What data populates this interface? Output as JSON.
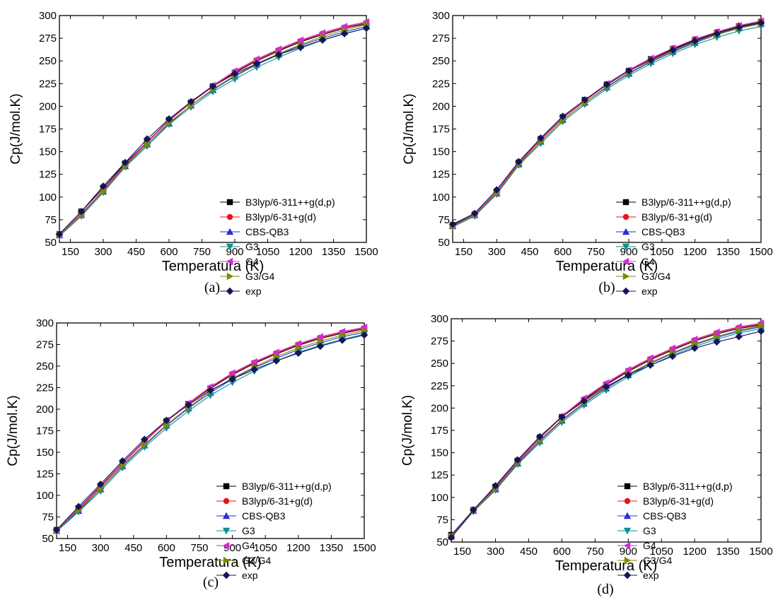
{
  "chart_data": [
    {
      "type": "line",
      "panel_label": "(a)",
      "xlabel": "Temperatura (K)",
      "ylabel": "Cp(J/mol.K)",
      "xlim": [
        100,
        1500
      ],
      "ylim": [
        50,
        300
      ],
      "xticks": [
        "150",
        "300",
        "450",
        "600",
        "750",
        "900",
        "1050",
        "1200",
        "1350",
        "1500"
      ],
      "yticks": [
        "50",
        "75",
        "100",
        "125",
        "150",
        "175",
        "200",
        "225",
        "250",
        "275",
        "300"
      ],
      "legend_position": "right",
      "x": [
        100,
        200,
        300,
        400,
        500,
        600,
        700,
        800,
        900,
        1000,
        1100,
        1200,
        1300,
        1400,
        1500
      ],
      "series": [
        {
          "name": "B3lyp/6-311++g(d,p)",
          "values": [
            59,
            84,
            110,
            137,
            161,
            185,
            204,
            222,
            237,
            250,
            261,
            271,
            279,
            286,
            291
          ]
        },
        {
          "name": "B3lyp/6-31+g(d)",
          "values": [
            58,
            82,
            107,
            135,
            160,
            184,
            204,
            222,
            238,
            251,
            262,
            272,
            280,
            287,
            292
          ]
        },
        {
          "name": "CBS-QB3",
          "values": [
            58,
            80,
            106,
            134,
            158,
            181,
            201,
            218,
            233,
            246,
            257,
            267,
            275,
            282,
            288
          ]
        },
        {
          "name": "G3",
          "values": [
            57,
            79,
            105,
            133,
            156,
            180,
            199,
            216,
            230,
            243,
            254,
            264,
            273,
            280,
            286
          ]
        },
        {
          "name": "G4",
          "values": [
            58,
            81,
            108,
            136,
            161,
            185,
            205,
            223,
            239,
            252,
            263,
            273,
            281,
            288,
            293
          ]
        },
        {
          "name": "G3/G4",
          "values": [
            58,
            80,
            106,
            134,
            158,
            182,
            201,
            219,
            234,
            247,
            258,
            268,
            277,
            284,
            290
          ]
        },
        {
          "name": "exp",
          "values": [
            59,
            84,
            112,
            138,
            164,
            186,
            205,
            222,
            236,
            247,
            257,
            265,
            273,
            280,
            286
          ]
        }
      ]
    },
    {
      "type": "line",
      "panel_label": "(b)",
      "xlabel": "Temperatura (K)",
      "ylabel": "Cp(J/mol.K)",
      "xlim": [
        100,
        1500
      ],
      "ylim": [
        50,
        300
      ],
      "xticks": [
        "150",
        "300",
        "450",
        "600",
        "750",
        "900",
        "1050",
        "1200",
        "1350",
        "1500"
      ],
      "yticks": [
        "50",
        "75",
        "100",
        "125",
        "150",
        "175",
        "200",
        "225",
        "250",
        "275",
        "300"
      ],
      "legend_position": "right",
      "x": [
        100,
        200,
        300,
        400,
        500,
        600,
        700,
        800,
        900,
        1000,
        1100,
        1200,
        1300,
        1400,
        1500
      ],
      "series": [
        {
          "name": "B3lyp/6-311++g(d,p)",
          "values": [
            69,
            81,
            106,
            138,
            164,
            188,
            207,
            224,
            239,
            252,
            263,
            273,
            281,
            288,
            293
          ]
        },
        {
          "name": "B3lyp/6-31+g(d)",
          "values": [
            68,
            80,
            105,
            137,
            163,
            187,
            206,
            224,
            239,
            252,
            264,
            274,
            282,
            289,
            294
          ]
        },
        {
          "name": "CBS-QB3",
          "values": [
            68,
            80,
            104,
            136,
            161,
            185,
            204,
            221,
            236,
            249,
            260,
            270,
            279,
            286,
            291
          ]
        },
        {
          "name": "G3",
          "values": [
            67,
            79,
            103,
            135,
            159,
            183,
            202,
            219,
            234,
            247,
            258,
            268,
            276,
            283,
            288
          ]
        },
        {
          "name": "G4",
          "values": [
            68,
            81,
            106,
            138,
            164,
            188,
            207,
            225,
            240,
            253,
            264,
            274,
            282,
            289,
            294
          ]
        },
        {
          "name": "G3/G4",
          "values": [
            68,
            80,
            104,
            136,
            161,
            185,
            204,
            222,
            237,
            250,
            261,
            271,
            279,
            286,
            291
          ]
        },
        {
          "name": "exp",
          "values": [
            70,
            82,
            108,
            139,
            165,
            189,
            207,
            224,
            239,
            251,
            262,
            272,
            280,
            287,
            292
          ]
        }
      ]
    },
    {
      "type": "line",
      "panel_label": "(c)",
      "xlabel": "Temperatura (K)",
      "ylabel": "Cp(J/mol.K)",
      "xlim": [
        100,
        1500
      ],
      "ylim": [
        50,
        300
      ],
      "xticks": [
        "150",
        "300",
        "450",
        "600",
        "750",
        "900",
        "1050",
        "1200",
        "1350",
        "1500"
      ],
      "yticks": [
        "50",
        "75",
        "100",
        "125",
        "150",
        "175",
        "200",
        "225",
        "250",
        "275",
        "300"
      ],
      "legend_position": "right",
      "x": [
        100,
        200,
        300,
        400,
        500,
        600,
        700,
        800,
        900,
        1000,
        1100,
        1200,
        1300,
        1400,
        1500
      ],
      "series": [
        {
          "name": "B3lyp/6-311++g(d,p)",
          "values": [
            60,
            85,
            111,
            138,
            163,
            186,
            206,
            224,
            240,
            253,
            264,
            274,
            282,
            288,
            293
          ]
        },
        {
          "name": "B3lyp/6-31+g(d)",
          "values": [
            59,
            84,
            109,
            137,
            162,
            186,
            206,
            225,
            241,
            254,
            265,
            275,
            283,
            289,
            294
          ]
        },
        {
          "name": "CBS-QB3",
          "values": [
            59,
            82,
            107,
            134,
            158,
            181,
            201,
            219,
            235,
            248,
            259,
            269,
            277,
            284,
            289
          ]
        },
        {
          "name": "G3",
          "values": [
            58,
            81,
            105,
            132,
            156,
            178,
            198,
            216,
            231,
            244,
            256,
            266,
            274,
            281,
            287
          ]
        },
        {
          "name": "G4",
          "values": [
            59,
            85,
            110,
            138,
            163,
            187,
            207,
            226,
            242,
            255,
            266,
            276,
            284,
            290,
            295
          ]
        },
        {
          "name": "G3/G4",
          "values": [
            59,
            83,
            107,
            135,
            159,
            182,
            202,
            221,
            236,
            249,
            261,
            271,
            279,
            286,
            291
          ]
        },
        {
          "name": "exp",
          "values": [
            60,
            87,
            113,
            140,
            165,
            187,
            205,
            222,
            235,
            246,
            256,
            265,
            273,
            280,
            286
          ]
        }
      ]
    },
    {
      "type": "line",
      "panel_label": "(d)",
      "xlabel": "Temperatura (K)",
      "ylabel": "Cp(J/mol.K)",
      "xlim": [
        100,
        1500
      ],
      "ylim": [
        50,
        300
      ],
      "xticks": [
        "150",
        "300",
        "450",
        "600",
        "750",
        "900",
        "1050",
        "1200",
        "1350",
        "1500"
      ],
      "yticks": [
        "50",
        "75",
        "100",
        "125",
        "150",
        "175",
        "200",
        "225",
        "250",
        "275",
        "300"
      ],
      "legend_position": "bottom-right",
      "x": [
        100,
        200,
        300,
        400,
        500,
        600,
        700,
        800,
        900,
        1000,
        1100,
        1200,
        1300,
        1400,
        1500
      ],
      "series": [
        {
          "name": "B3lyp/6-311++g(d,p)",
          "values": [
            58,
            86,
            112,
            141,
            167,
            190,
            209,
            226,
            241,
            254,
            265,
            275,
            283,
            289,
            293
          ]
        },
        {
          "name": "B3lyp/6-31+g(d)",
          "values": [
            57,
            86,
            110,
            140,
            166,
            190,
            210,
            227,
            242,
            255,
            266,
            276,
            284,
            290,
            294
          ]
        },
        {
          "name": "CBS-QB3",
          "values": [
            56,
            85,
            109,
            138,
            163,
            186,
            205,
            222,
            237,
            250,
            261,
            271,
            279,
            286,
            291
          ]
        },
        {
          "name": "G3",
          "values": [
            55,
            84,
            108,
            137,
            161,
            184,
            203,
            220,
            235,
            248,
            259,
            269,
            277,
            284,
            289
          ]
        },
        {
          "name": "G4",
          "values": [
            57,
            86,
            111,
            141,
            167,
            191,
            211,
            228,
            243,
            256,
            267,
            277,
            285,
            291,
            295
          ]
        },
        {
          "name": "G3/G4",
          "values": [
            56,
            85,
            109,
            139,
            164,
            187,
            206,
            223,
            238,
            251,
            262,
            272,
            280,
            287,
            292
          ]
        },
        {
          "name": "exp",
          "values": [
            55,
            86,
            113,
            142,
            168,
            190,
            208,
            224,
            237,
            248,
            258,
            267,
            274,
            280,
            286
          ]
        }
      ]
    }
  ],
  "series_colors": [
    "#000000",
    "#e8141b",
    "#2b2bd9",
    "#0f8f8f",
    "#d52bd5",
    "#7d8a00",
    "#14145a"
  ],
  "series_markers": [
    "square",
    "circle",
    "triangle-up",
    "triangle-down",
    "triangle-left",
    "triangle-right",
    "diamond"
  ]
}
